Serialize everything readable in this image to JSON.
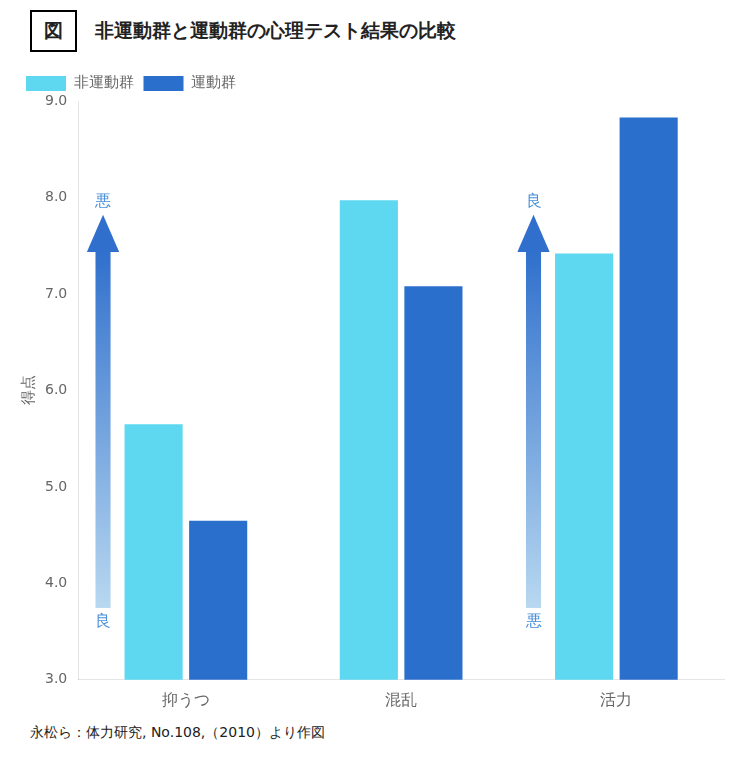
{
  "chart_data": {
    "type": "bar",
    "fig_label": "図",
    "title": "非運動群と運動群の心理テスト結果の比較",
    "categories": [
      "抑うつ",
      "混乱",
      "活力"
    ],
    "series": [
      {
        "name": "非運動群",
        "color": "#5DD8F0",
        "values": [
          5.65,
          7.97,
          7.42
        ]
      },
      {
        "name": "運動群",
        "color": "#2B6FCC",
        "values": [
          4.65,
          7.08,
          8.83
        ]
      }
    ],
    "ylabel": "得点",
    "ylim": [
      3.0,
      9.0
    ],
    "yticks": [
      {
        "value": 3.0,
        "label": "3.0"
      },
      {
        "value": 4.0,
        "label": "4.0"
      },
      {
        "value": 5.0,
        "label": "5.0"
      },
      {
        "value": 6.0,
        "label": "6.0"
      },
      {
        "value": 7.0,
        "label": "7.0"
      },
      {
        "value": 8.0,
        "label": "8.0"
      },
      {
        "value": 9.0,
        "label": "9.0"
      }
    ],
    "grid": false,
    "legend": "upper left",
    "annotations": [
      {
        "category": "抑うつ",
        "y_from": 3.75,
        "y_to": 7.82,
        "text_top": "悪",
        "text_bottom": "良",
        "colors": [
          "#B8D8F0",
          "#3070CC"
        ],
        "color": "#4A90D8"
      },
      {
        "category": "活力",
        "y_from": 3.75,
        "y_to": 7.82,
        "text_top": "良",
        "text_bottom": "悪",
        "colors": [
          "#B8D8F0",
          "#3070CC"
        ],
        "color": "#4A90D8"
      }
    ],
    "footnote": "永松ら：体力研究, No.108,（2010）より作図"
  }
}
